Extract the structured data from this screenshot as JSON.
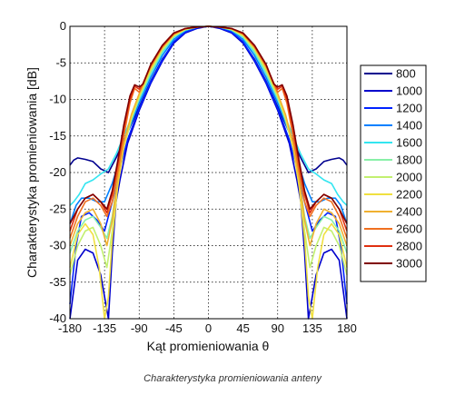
{
  "caption": "Charakterystyka promieniowania anteny",
  "chart_data": {
    "type": "line",
    "title": "",
    "xlabel": "Kąt promieniowania θ",
    "ylabel": "Charakterystyka promieniowania [dB]",
    "xlim": [
      -180,
      180
    ],
    "ylim": [
      -40,
      0
    ],
    "xticks": [
      -180,
      -135,
      -90,
      -45,
      0,
      45,
      90,
      135,
      180
    ],
    "yticks": [
      0,
      -5,
      -10,
      -15,
      -20,
      -25,
      -30,
      -35,
      -40
    ],
    "xtick_labels": [
      "-180",
      "-135",
      "-90",
      "-45",
      "0",
      "45",
      "90",
      "135",
      "180"
    ],
    "ytick_labels": [
      "0",
      "-5",
      "-10",
      "-15",
      "-20",
      "-25",
      "-30",
      "-35",
      "-40"
    ],
    "grid": true,
    "grid_style": "dotted",
    "legend_position": "right-outside",
    "series": [
      {
        "name": "800",
        "color": "#00008f",
        "points": [
          [
            0,
            0
          ],
          [
            15,
            -0.2
          ],
          [
            30,
            -0.8
          ],
          [
            45,
            -2.2
          ],
          [
            60,
            -4.5
          ],
          [
            75,
            -7.5
          ],
          [
            90,
            -11
          ],
          [
            105,
            -14.5
          ],
          [
            120,
            -18
          ],
          [
            130,
            -20
          ],
          [
            140,
            -19.5
          ],
          [
            150,
            -18.5
          ],
          [
            160,
            -18.2
          ],
          [
            170,
            -18
          ],
          [
            175,
            -18.3
          ],
          [
            180,
            -19
          ]
        ]
      },
      {
        "name": "1000",
        "color": "#0000cc",
        "points": [
          [
            0,
            0
          ],
          [
            15,
            -0.3
          ],
          [
            30,
            -0.9
          ],
          [
            45,
            -2.3
          ],
          [
            60,
            -4.8
          ],
          [
            75,
            -7.8
          ],
          [
            90,
            -11.5
          ],
          [
            105,
            -16
          ],
          [
            115,
            -21
          ],
          [
            120,
            -24
          ],
          [
            125,
            -31
          ],
          [
            130,
            -40
          ],
          [
            140,
            -34
          ],
          [
            150,
            -31
          ],
          [
            160,
            -30.5
          ],
          [
            170,
            -32
          ],
          [
            180,
            -40
          ]
        ]
      },
      {
        "name": "1200",
        "color": "#0022ff",
        "points": [
          [
            0,
            0
          ],
          [
            15,
            -0.2
          ],
          [
            30,
            -0.8
          ],
          [
            45,
            -2.1
          ],
          [
            60,
            -4.6
          ],
          [
            75,
            -7.6
          ],
          [
            90,
            -11.2
          ],
          [
            105,
            -15.5
          ],
          [
            115,
            -19.5
          ],
          [
            125,
            -24
          ],
          [
            135,
            -28
          ],
          [
            145,
            -26.5
          ],
          [
            155,
            -25.5
          ],
          [
            165,
            -26
          ],
          [
            172,
            -30
          ],
          [
            180,
            -38
          ]
        ]
      },
      {
        "name": "1400",
        "color": "#0080ff",
        "points": [
          [
            0,
            0
          ],
          [
            15,
            -0.1
          ],
          [
            30,
            -0.6
          ],
          [
            45,
            -1.8
          ],
          [
            60,
            -4
          ],
          [
            75,
            -7
          ],
          [
            90,
            -10.5
          ],
          [
            105,
            -14.5
          ],
          [
            115,
            -18
          ],
          [
            125,
            -21.5
          ],
          [
            135,
            -24
          ],
          [
            145,
            -24
          ],
          [
            155,
            -23.5
          ],
          [
            165,
            -23.5
          ],
          [
            172,
            -24.5
          ],
          [
            180,
            -27
          ]
        ]
      },
      {
        "name": "1600",
        "color": "#33e5f0",
        "points": [
          [
            0,
            0
          ],
          [
            15,
            -0.1
          ],
          [
            30,
            -0.5
          ],
          [
            45,
            -1.5
          ],
          [
            60,
            -3.6
          ],
          [
            75,
            -6.5
          ],
          [
            90,
            -10
          ],
          [
            100,
            -12.5
          ],
          [
            110,
            -15
          ],
          [
            120,
            -17.5
          ],
          [
            130,
            -19.5
          ],
          [
            140,
            -20.2
          ],
          [
            150,
            -21
          ],
          [
            160,
            -21.5
          ],
          [
            168,
            -23
          ],
          [
            175,
            -24
          ],
          [
            180,
            -24.5
          ]
        ]
      },
      {
        "name": "1800",
        "color": "#88f0a8",
        "points": [
          [
            0,
            0
          ],
          [
            15,
            -0.1
          ],
          [
            30,
            -0.5
          ],
          [
            45,
            -1.4
          ],
          [
            60,
            -3.4
          ],
          [
            75,
            -6.3
          ],
          [
            90,
            -9.8
          ],
          [
            100,
            -12.8
          ],
          [
            110,
            -16.5
          ],
          [
            118,
            -21
          ],
          [
            125,
            -26
          ],
          [
            132,
            -29
          ],
          [
            140,
            -27.5
          ],
          [
            150,
            -26
          ],
          [
            160,
            -26.5
          ],
          [
            170,
            -28
          ],
          [
            180,
            -31
          ]
        ]
      },
      {
        "name": "2000",
        "color": "#c2f070",
        "points": [
          [
            0,
            0
          ],
          [
            15,
            -0.1
          ],
          [
            30,
            -0.4
          ],
          [
            45,
            -1.3
          ],
          [
            60,
            -3.2
          ],
          [
            75,
            -6
          ],
          [
            90,
            -9.6
          ],
          [
            100,
            -12.5
          ],
          [
            110,
            -16.5
          ],
          [
            118,
            -21.5
          ],
          [
            125,
            -28
          ],
          [
            132,
            -33
          ],
          [
            140,
            -30
          ],
          [
            150,
            -27.5
          ],
          [
            160,
            -28
          ],
          [
            170,
            -30
          ],
          [
            180,
            -34
          ]
        ]
      },
      {
        "name": "2200",
        "color": "#f0e040",
        "points": [
          [
            0,
            0
          ],
          [
            15,
            -0.1
          ],
          [
            30,
            -0.4
          ],
          [
            45,
            -1.2
          ],
          [
            60,
            -3
          ],
          [
            75,
            -5.8
          ],
          [
            90,
            -9.4
          ],
          [
            100,
            -12.3
          ],
          [
            110,
            -16.5
          ],
          [
            118,
            -22
          ],
          [
            125,
            -29
          ],
          [
            130,
            -37
          ],
          [
            135,
            -40
          ],
          [
            142,
            -33
          ],
          [
            150,
            -28.5
          ],
          [
            160,
            -27
          ],
          [
            170,
            -28.5
          ],
          [
            180,
            -33
          ]
        ]
      },
      {
        "name": "2400",
        "color": "#f0b030",
        "points": [
          [
            0,
            0
          ],
          [
            15,
            -0.1
          ],
          [
            30,
            -0.3
          ],
          [
            45,
            -1.1
          ],
          [
            60,
            -2.9
          ],
          [
            75,
            -5.6
          ],
          [
            90,
            -9.2
          ],
          [
            100,
            -12
          ],
          [
            110,
            -16
          ],
          [
            118,
            -21
          ],
          [
            125,
            -26.5
          ],
          [
            132,
            -30
          ],
          [
            140,
            -27
          ],
          [
            150,
            -25
          ],
          [
            160,
            -25.5
          ],
          [
            170,
            -27
          ],
          [
            180,
            -30
          ]
        ]
      },
      {
        "name": "2600",
        "color": "#f07020",
        "points": [
          [
            0,
            0
          ],
          [
            15,
            -0.1
          ],
          [
            30,
            -0.3
          ],
          [
            45,
            -1
          ],
          [
            60,
            -2.8
          ],
          [
            75,
            -5.4
          ],
          [
            85,
            -7.8
          ],
          [
            90,
            -9
          ],
          [
            96,
            -8.5
          ],
          [
            102,
            -10.5
          ],
          [
            110,
            -15
          ],
          [
            118,
            -20
          ],
          [
            125,
            -24
          ],
          [
            132,
            -26
          ],
          [
            140,
            -24.5
          ],
          [
            150,
            -23.5
          ],
          [
            160,
            -24
          ],
          [
            170,
            -26
          ],
          [
            180,
            -29
          ]
        ]
      },
      {
        "name": "2800",
        "color": "#e03010",
        "points": [
          [
            0,
            0
          ],
          [
            15,
            -0.1
          ],
          [
            30,
            -0.3
          ],
          [
            45,
            -1
          ],
          [
            60,
            -2.7
          ],
          [
            75,
            -5.3
          ],
          [
            85,
            -7.8
          ],
          [
            90,
            -8.6
          ],
          [
            96,
            -8.2
          ],
          [
            102,
            -10
          ],
          [
            110,
            -14
          ],
          [
            118,
            -19
          ],
          [
            125,
            -23
          ],
          [
            132,
            -25.5
          ],
          [
            140,
            -24
          ],
          [
            150,
            -23
          ],
          [
            160,
            -23.5
          ],
          [
            170,
            -25
          ],
          [
            180,
            -28
          ]
        ]
      },
      {
        "name": "3000",
        "color": "#800000",
        "points": [
          [
            0,
            0
          ],
          [
            15,
            -0.1
          ],
          [
            30,
            -0.3
          ],
          [
            45,
            -0.9
          ],
          [
            60,
            -2.6
          ],
          [
            75,
            -5.2
          ],
          [
            85,
            -7.9
          ],
          [
            90,
            -8.3
          ],
          [
            96,
            -8
          ],
          [
            102,
            -9.5
          ],
          [
            110,
            -13.5
          ],
          [
            118,
            -18.5
          ],
          [
            125,
            -22.5
          ],
          [
            132,
            -25
          ],
          [
            140,
            -24
          ],
          [
            150,
            -23
          ],
          [
            160,
            -23.5
          ],
          [
            170,
            -25
          ],
          [
            180,
            -27
          ]
        ]
      }
    ]
  }
}
